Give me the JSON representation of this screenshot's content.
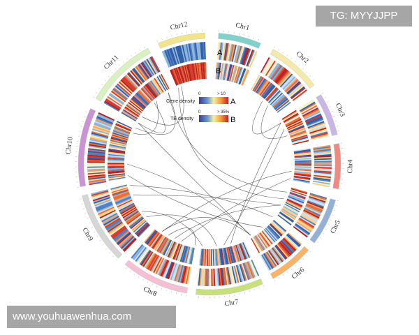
{
  "chromosomes": [
    {
      "name": "Chr1",
      "color": "#7fd1c9"
    },
    {
      "name": "Chr2",
      "color": "#f3e9a9"
    },
    {
      "name": "Chr3",
      "color": "#c9b6e4"
    },
    {
      "name": "Chr4",
      "color": "#f08a80"
    },
    {
      "name": "Chr5",
      "color": "#93b1d6"
    },
    {
      "name": "Chr6",
      "color": "#f5b46a"
    },
    {
      "name": "Chr7",
      "color": "#c8e07a"
    },
    {
      "name": "Chr8",
      "color": "#f5bfd6"
    },
    {
      "name": "Chr9",
      "color": "#d6d6d6"
    },
    {
      "name": "Chr10",
      "color": "#c994d1"
    },
    {
      "name": "Chr11",
      "color": "#d9f0c0"
    },
    {
      "name": "Chr12",
      "color": "#f1e48a"
    }
  ],
  "tracks": {
    "outer_letter": "A",
    "inner_letter": "B"
  },
  "legend": {
    "gene": {
      "title": "Gene density",
      "min": "0",
      "max": "> 10",
      "letter": "A"
    },
    "te": {
      "title": "TE density",
      "min": "0",
      "max": "> 35%",
      "letter": "B"
    }
  },
  "watermarks": {
    "top": "TG: MYYJJPP",
    "bottom": "www.youhuawenhua.com"
  }
}
